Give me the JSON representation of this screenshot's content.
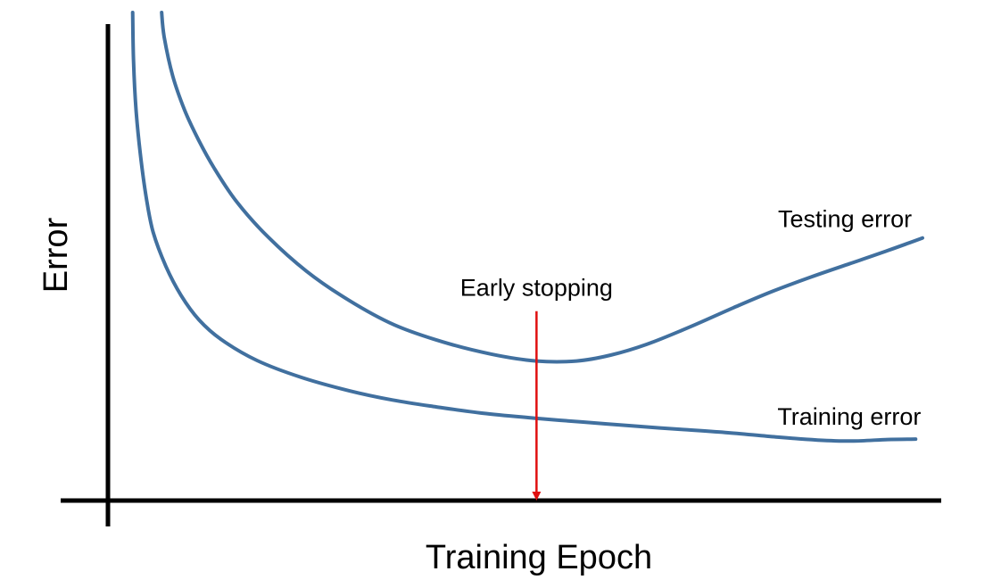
{
  "chart_data": {
    "type": "line",
    "xlabel": "Training Epoch",
    "ylabel": "Error",
    "grid": false,
    "xlim": [
      0,
      100
    ],
    "ylim": [
      0,
      100
    ],
    "series": [
      {
        "name": "Testing error",
        "color": "#41709f",
        "points": [
          [
            6.3,
            100
          ],
          [
            6.6,
            95
          ],
          [
            7.6,
            87
          ],
          [
            9.0,
            80
          ],
          [
            10.6,
            74
          ],
          [
            12.5,
            68
          ],
          [
            15.2,
            61
          ],
          [
            18.8,
            54
          ],
          [
            23.3,
            47
          ],
          [
            28.3,
            41
          ],
          [
            33.6,
            36
          ],
          [
            39.3,
            32.5
          ],
          [
            45.0,
            30
          ],
          [
            50.3,
            28.6
          ],
          [
            55.0,
            28.6
          ],
          [
            59.0,
            29.8
          ],
          [
            63.2,
            32
          ],
          [
            68.2,
            35.5
          ],
          [
            73.4,
            39.5
          ],
          [
            77.9,
            42.8
          ],
          [
            82.5,
            45.8
          ],
          [
            87.0,
            48.5
          ],
          [
            91.5,
            51.2
          ],
          [
            95.6,
            53.8
          ]
        ]
      },
      {
        "name": "Training error",
        "color": "#41709f",
        "points": [
          [
            2.9,
            100
          ],
          [
            3.0,
            90
          ],
          [
            3.3,
            80
          ],
          [
            3.8,
            71
          ],
          [
            4.5,
            62
          ],
          [
            5.3,
            55
          ],
          [
            6.8,
            48
          ],
          [
            8.6,
            42
          ],
          [
            10.7,
            37
          ],
          [
            13.3,
            33
          ],
          [
            17.5,
            28.7
          ],
          [
            22.6,
            25.3
          ],
          [
            28.3,
            22.5
          ],
          [
            33.4,
            20.6
          ],
          [
            38.5,
            19.2
          ],
          [
            44.0,
            17.9
          ],
          [
            50.0,
            16.9
          ],
          [
            55.6,
            16.1
          ],
          [
            61.5,
            15.3
          ],
          [
            67.1,
            14.6
          ],
          [
            72.8,
            13.9
          ],
          [
            78.6,
            13.0
          ],
          [
            83.3,
            12.4
          ],
          [
            87.3,
            12.2
          ],
          [
            91.5,
            12.5
          ],
          [
            94.8,
            12.6
          ]
        ]
      }
    ],
    "annotations": [
      {
        "text": "Testing error",
        "x": 86.5,
        "y": 56
      },
      {
        "text": "Training error",
        "x": 87,
        "y": 15.5
      },
      {
        "text": "Early stopping",
        "x": 50.3,
        "y": 42,
        "arrow_from_y": 38.8,
        "arrow_to_y": 0,
        "color": "#e01010"
      }
    ]
  }
}
